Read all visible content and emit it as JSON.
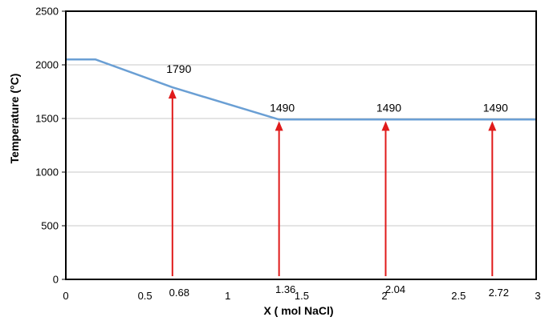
{
  "chart_data": {
    "type": "line",
    "xlabel": "X ( mol NaCl)",
    "ylabel": "Temperature (°C)",
    "xlim": [
      0,
      3
    ],
    "ylim": [
      0,
      2500
    ],
    "grid": "horizontal",
    "legend": "none",
    "x_ticks": [
      {
        "value": 0,
        "label": "0"
      },
      {
        "value": 0.5,
        "label": "0.5"
      },
      {
        "value": 1,
        "label": "1"
      },
      {
        "value": 1.5,
        "label": "1.5"
      },
      {
        "value": 2,
        "label": "2"
      },
      {
        "value": 2.5,
        "label": "2.5"
      },
      {
        "value": 3,
        "label": "3"
      }
    ],
    "y_ticks": [
      {
        "value": 0,
        "label": "0"
      },
      {
        "value": 500,
        "label": "500"
      },
      {
        "value": 1000,
        "label": "1000"
      },
      {
        "value": 1500,
        "label": "1500"
      },
      {
        "value": 2000,
        "label": "2000"
      },
      {
        "value": 2500,
        "label": "2500"
      }
    ],
    "series": [
      {
        "color": "#6a9fd4",
        "x": [
          0,
          0.19,
          0.68,
          1.36,
          3
        ],
        "y": [
          2050,
          2050,
          1790,
          1490,
          1490
        ]
      }
    ],
    "annotations": [
      {
        "x": 0.68,
        "y_top": 1790,
        "value_label": "1790",
        "x_label": "0.68"
      },
      {
        "x": 1.36,
        "y_top": 1490,
        "value_label": "1490",
        "x_label": "1.36"
      },
      {
        "x": 2.04,
        "y_top": 1490,
        "value_label": "1490",
        "x_label": "2.04"
      },
      {
        "x": 2.72,
        "y_top": 1490,
        "value_label": "1490",
        "x_label": "2.72"
      }
    ],
    "arrow_color": "#e01b1b",
    "grid_color": "#c8c8c8",
    "frame_color": "#000000"
  }
}
